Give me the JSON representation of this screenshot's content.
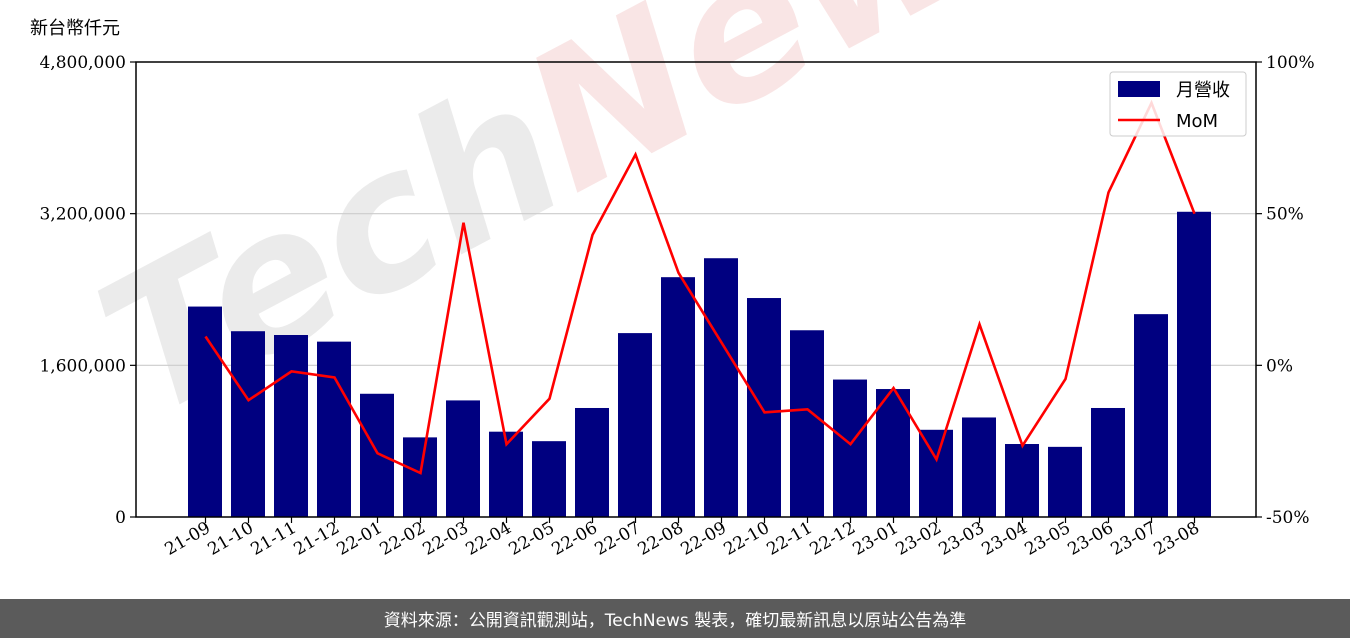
{
  "unit_label": "新台幣仟元",
  "footer_text": "資料來源：公開資訊觀測站，TechNews 製表，確切最新訊息以原站公告為準",
  "watermark": {
    "text_gray": "Tech",
    "text_red": "News"
  },
  "colors": {
    "bar": "#000080",
    "line": "#ff0000",
    "grid": "#cccccc",
    "footer_bg": "#5b5b5b"
  },
  "chart_data": {
    "type": "bar",
    "categories": [
      "21-09",
      "21-10",
      "21-11",
      "21-12",
      "22-01",
      "22-02",
      "22-03",
      "22-04",
      "22-05",
      "22-06",
      "22-07",
      "22-08",
      "22-09",
      "22-10",
      "22-11",
      "22-12",
      "23-01",
      "23-02",
      "23-03",
      "23-04",
      "23-05",
      "23-06",
      "23-07",
      "23-08"
    ],
    "series": [
      {
        "name": "月營收",
        "type": "bar",
        "axis": "left",
        "values": [
          2220000,
          1960000,
          1920000,
          1850000,
          1300000,
          840000,
          1230000,
          900000,
          800000,
          1150000,
          1940000,
          2530000,
          2730000,
          2310000,
          1970000,
          1450000,
          1350000,
          920000,
          1050000,
          770000,
          740000,
          1150000,
          2140000,
          3220000
        ]
      },
      {
        "name": "MoM",
        "type": "line",
        "axis": "right",
        "values": [
          9.5,
          -11.5,
          -2,
          -4,
          -29,
          -35.5,
          47,
          -26,
          -11,
          43,
          69.5,
          30.5,
          7.5,
          -15.5,
          -14.5,
          -26,
          -7.5,
          -31,
          13.5,
          -26.5,
          -4.5,
          57,
          86.5,
          50
        ]
      }
    ],
    "y_left": {
      "min": 0,
      "max": 4800000,
      "ticks": [
        0,
        1600000,
        3200000,
        4800000
      ],
      "tick_labels": [
        "0",
        "1,600,000",
        "3,200,000",
        "4,800,000"
      ]
    },
    "y_right": {
      "min": -50,
      "max": 100,
      "ticks": [
        -50,
        0,
        50,
        100
      ],
      "tick_labels": [
        "-50%",
        "0%",
        "50%",
        "100%"
      ]
    },
    "grid": "horizontal",
    "legend": "top-right"
  }
}
